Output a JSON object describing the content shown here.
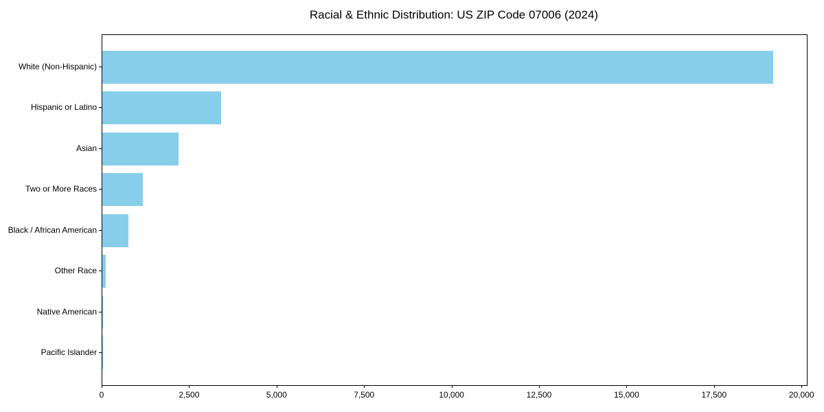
{
  "title": "Racial & Ethnic Distribution: US ZIP Code 07006 (2024)",
  "chart_data": {
    "type": "bar",
    "orientation": "horizontal",
    "title": "Racial & Ethnic Distribution: US ZIP Code 07006 (2024)",
    "xlabel": "",
    "ylabel": "",
    "categories": [
      "White (Non-Hispanic)",
      "Hispanic or Latino",
      "Asian",
      "Two or More Races",
      "Black / African American",
      "Other Race",
      "Native American",
      "Pacific Islander"
    ],
    "values": [
      19175,
      3400,
      2170,
      1160,
      750,
      100,
      10,
      3
    ],
    "xticks": [
      0,
      2500,
      5000,
      7500,
      10000,
      12500,
      15000,
      17500,
      20000
    ],
    "xtick_labels": [
      "0",
      "2,500",
      "5,000",
      "7,500",
      "10,000",
      "12,500",
      "15,000",
      "17,500",
      "20,000"
    ],
    "xlim": [
      0,
      20133
    ],
    "grid": false,
    "legend": null,
    "bar_color": "#87CEEB"
  },
  "colors": {
    "bar": "#87CEEB",
    "spine": "#000000",
    "text": "#000000",
    "background": "#ffffff"
  }
}
